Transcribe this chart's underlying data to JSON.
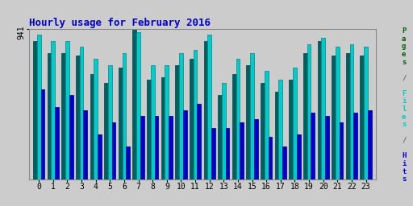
{
  "title": "Hourly usage for February 2016",
  "hours": [
    0,
    1,
    2,
    3,
    4,
    5,
    6,
    7,
    8,
    9,
    10,
    11,
    12,
    13,
    14,
    15,
    16,
    17,
    18,
    19,
    20,
    21,
    22,
    23
  ],
  "pages": [
    92,
    84,
    84,
    82,
    70,
    64,
    74,
    100,
    66,
    68,
    76,
    80,
    92,
    56,
    70,
    76,
    64,
    58,
    66,
    84,
    92,
    82,
    84,
    82
  ],
  "files": [
    96,
    92,
    92,
    88,
    80,
    76,
    84,
    98,
    76,
    76,
    84,
    86,
    96,
    64,
    80,
    84,
    72,
    66,
    74,
    90,
    94,
    88,
    90,
    88
  ],
  "hits": [
    60,
    48,
    56,
    46,
    30,
    38,
    22,
    42,
    42,
    42,
    46,
    50,
    34,
    34,
    38,
    40,
    28,
    22,
    30,
    44,
    42,
    38,
    44,
    46
  ],
  "pages_color": "#006060",
  "files_color": "#00cccc",
  "hits_color": "#0000cc",
  "bg_color": "#cccccc",
  "plot_bg_color": "#cccccc",
  "title_color": "#0000cc",
  "ymax": 100,
  "ytick_label": "941",
  "seg_pages_color": "#006000",
  "seg_files_color": "#00cccc",
  "seg_hits_color": "#0000ee"
}
